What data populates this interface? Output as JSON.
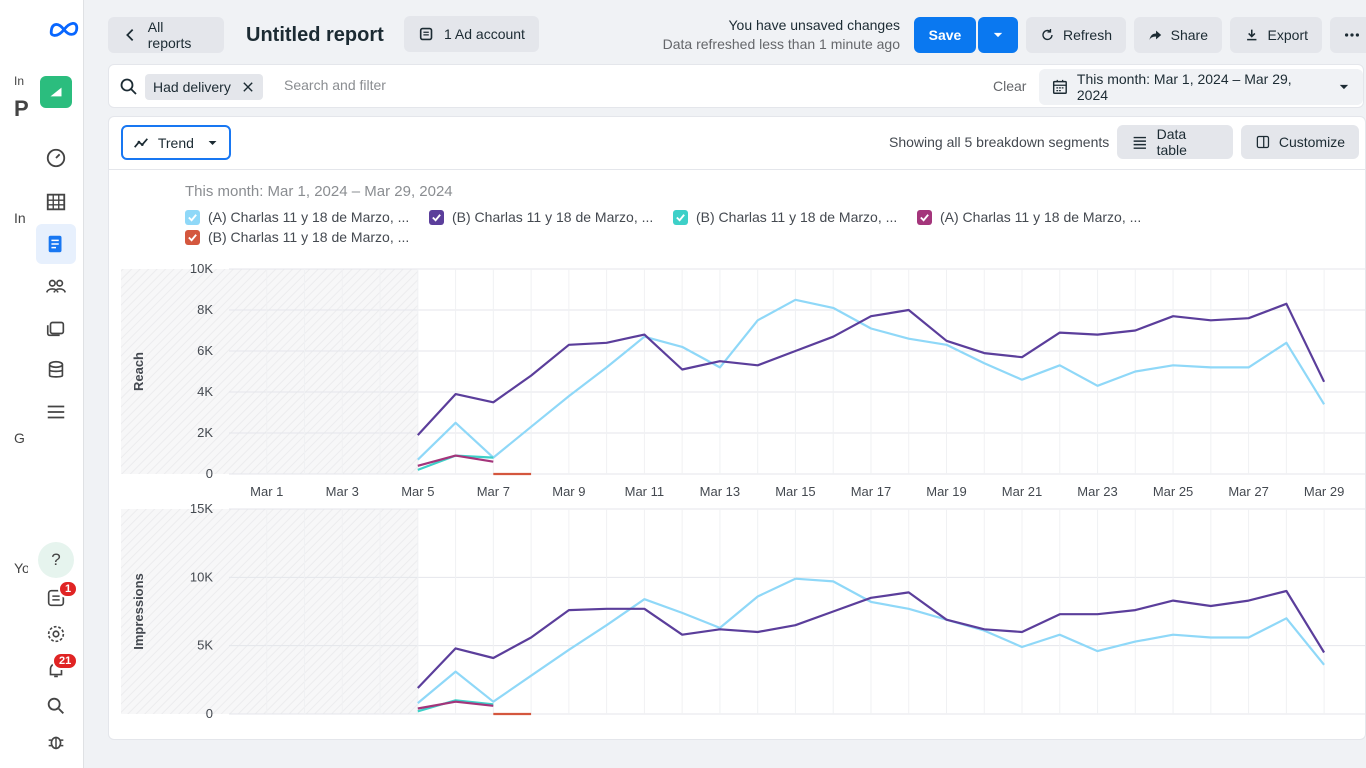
{
  "left_fragments": [
    "In",
    "P",
    "In",
    "G",
    "Yo"
  ],
  "nav": {
    "notifications_badge": "1",
    "alerts_badge": "21"
  },
  "header": {
    "back_label": "All reports",
    "title": "Untitled report",
    "ad_account_label": "1 Ad account",
    "unsaved_text": "You have unsaved changes",
    "refreshed_text": "Data refreshed less than 1 minute ago",
    "save_label": "Save",
    "refresh_label": "Refresh",
    "share_label": "Share",
    "export_label": "Export"
  },
  "filter": {
    "chip_label": "Had delivery",
    "placeholder": "Search and filter",
    "clear_label": "Clear",
    "date_label": "This month: Mar 1, 2024 – Mar 29, 2024"
  },
  "toolbar": {
    "view_label": "Trend",
    "segments_text": "Showing all 5 breakdown segments",
    "data_table_label": "Data table",
    "customize_label": "Customize"
  },
  "chart_data": {
    "type": "line",
    "subtitle": "This month: Mar 1, 2024 – Mar 29, 2024",
    "x_tick_labels": [
      "Mar 1",
      "Mar 3",
      "Mar 5",
      "Mar 7",
      "Mar 9",
      "Mar 11",
      "Mar 13",
      "Mar 15",
      "Mar 17",
      "Mar 19",
      "Mar 21",
      "Mar 23",
      "Mar 25",
      "Mar 27",
      "Mar 29"
    ],
    "x_days": [
      5,
      6,
      7,
      8,
      9,
      10,
      11,
      12,
      13,
      14,
      15,
      16,
      17,
      18,
      19,
      20,
      21,
      22,
      23,
      24,
      25,
      26,
      27,
      28,
      29
    ],
    "series": [
      {
        "name": "(A) Charlas 11 y 18 de Marzo, ...",
        "color": "#8fd8f8",
        "reach": [
          700,
          2500,
          800,
          2300,
          3800,
          5200,
          6700,
          6200,
          5200,
          7500,
          8500,
          8100,
          7100,
          6600,
          6300,
          5400,
          4600,
          5300,
          4300,
          5000,
          5300,
          5200,
          5200,
          6400,
          3400
        ],
        "impressions": [
          800,
          3100,
          900,
          2800,
          4700,
          6500,
          8400,
          7400,
          6300,
          8600,
          9900,
          9700,
          8200,
          7700,
          6900,
          6100,
          4900,
          5800,
          4600,
          5300,
          5800,
          5600,
          5600,
          7000,
          3600
        ]
      },
      {
        "name": "(B) Charlas 11 y 18 de Marzo, ...",
        "color": "#5b3e9b",
        "reach": [
          1900,
          3900,
          3500,
          4800,
          6300,
          6400,
          6800,
          5100,
          5500,
          5300,
          6000,
          6700,
          7700,
          8000,
          6500,
          5900,
          5700,
          6900,
          6800,
          7000,
          7700,
          7500,
          7600,
          8300,
          4500
        ],
        "impressions": [
          1900,
          4800,
          4100,
          5600,
          7600,
          7700,
          7700,
          5800,
          6200,
          6000,
          6500,
          7500,
          8500,
          8900,
          6900,
          6200,
          6000,
          7300,
          7300,
          7600,
          8300,
          7900,
          8300,
          9000,
          4500
        ]
      },
      {
        "name": "(B) Charlas 11 y 18 de Marzo, ...",
        "color": "#3ed0c8",
        "reach": [
          200,
          900,
          800
        ],
        "impressions": [
          200,
          1000,
          700
        ]
      },
      {
        "name": "(A) Charlas 11 y 18 de Marzo, ...",
        "color": "#a4357b",
        "reach": [
          400,
          900,
          600
        ],
        "impressions": [
          400,
          900,
          600
        ]
      },
      {
        "name": "(B) Charlas 11 y 18 de Marzo, ...",
        "color": "#d4573e",
        "reach": [
          null,
          null,
          0,
          0
        ],
        "impressions": [
          null,
          null,
          0,
          0
        ]
      }
    ],
    "panels": [
      {
        "ylabel": "Reach",
        "key": "reach",
        "ylim": [
          0,
          10000
        ],
        "ticks": [
          0,
          2000,
          4000,
          6000,
          8000,
          10000
        ],
        "tick_labels": [
          "0",
          "2K",
          "4K",
          "6K",
          "8K",
          "10K"
        ]
      },
      {
        "ylabel": "Impressions",
        "key": "impressions",
        "ylim": [
          0,
          15000
        ],
        "ticks": [
          0,
          5000,
          10000,
          15000
        ],
        "tick_labels": [
          "0",
          "5K",
          "10K",
          "15K"
        ]
      }
    ],
    "xlim": [
      0,
      29.5
    ],
    "grid": true,
    "legend": "top-left"
  }
}
